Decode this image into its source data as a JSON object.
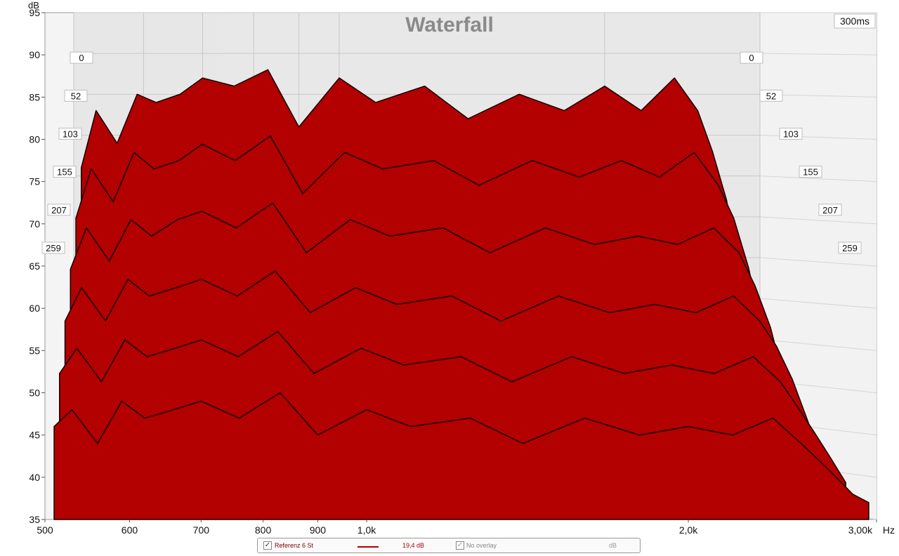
{
  "chart_data": {
    "type": "area",
    "title": "Waterfall",
    "ylabel": "dB",
    "xlabel": "Hz",
    "time_end_label": "300ms",
    "x_ticks": [
      {
        "value": 500,
        "label": "500"
      },
      {
        "value": 600,
        "label": "600"
      },
      {
        "value": 700,
        "label": "700"
      },
      {
        "value": 800,
        "label": "800"
      },
      {
        "value": 900,
        "label": "900"
      },
      {
        "value": 1000,
        "label": "1,0k"
      },
      {
        "value": 2000,
        "label": "2,0k"
      },
      {
        "value": 3000,
        "label": "3,00k"
      }
    ],
    "x_unit_label": "Hz",
    "xlim": [
      500,
      3000
    ],
    "x_scale": "log",
    "y_ticks": [
      95,
      90,
      85,
      80,
      75,
      70,
      65,
      60,
      55,
      50,
      45,
      40,
      35
    ],
    "ylim": [
      35,
      95
    ],
    "time_slices_ms": [
      0,
      52,
      103,
      155,
      207,
      259
    ],
    "series": [
      {
        "time_ms": 0,
        "x": [
          510,
          530,
          560,
          590,
          620,
          660,
          700,
          760,
          830,
          900,
          1000,
          1100,
          1250,
          1400,
          1600,
          1800,
          2000,
          2200,
          2400,
          2550,
          2650,
          2750,
          2850,
          2950
        ],
        "values": [
          76,
          83,
          79,
          85,
          84,
          85,
          87,
          86,
          88,
          81,
          87,
          84,
          86,
          82,
          85,
          83,
          86,
          83,
          87,
          83,
          78,
          72,
          62,
          50
        ]
      },
      {
        "time_ms": 52,
        "x": [
          510,
          530,
          560,
          590,
          620,
          660,
          700,
          760,
          830,
          900,
          1000,
          1100,
          1250,
          1400,
          1600,
          1800,
          2000,
          2200,
          2400,
          2550,
          2650,
          2750,
          2850,
          2950
        ],
        "values": [
          70,
          76,
          72,
          78,
          76,
          77,
          79,
          77,
          80,
          73,
          78,
          76,
          77,
          74,
          77,
          75,
          77,
          75,
          78,
          74,
          70,
          64,
          56,
          46
        ]
      },
      {
        "time_ms": 103,
        "x": [
          510,
          530,
          560,
          590,
          620,
          660,
          700,
          760,
          830,
          900,
          1000,
          1100,
          1250,
          1400,
          1600,
          1800,
          2000,
          2200,
          2400,
          2550,
          2650,
          2750,
          2850,
          2950
        ],
        "values": [
          64,
          69,
          65,
          70,
          68,
          70,
          71,
          69,
          72,
          66,
          70,
          68,
          69,
          66,
          69,
          67,
          68,
          67,
          69,
          66,
          62,
          57,
          50,
          43
        ]
      },
      {
        "time_ms": 155,
        "x": [
          510,
          530,
          560,
          590,
          620,
          660,
          700,
          760,
          830,
          900,
          1000,
          1100,
          1250,
          1400,
          1600,
          1800,
          2000,
          2200,
          2400,
          2550,
          2650,
          2750,
          2850,
          2950
        ],
        "values": [
          58,
          62,
          58,
          63,
          61,
          62,
          63,
          61,
          64,
          59,
          62,
          60,
          61,
          58,
          61,
          59,
          60,
          59,
          61,
          58,
          55,
          51,
          46,
          41
        ]
      },
      {
        "time_ms": 207,
        "x": [
          510,
          530,
          560,
          590,
          620,
          660,
          700,
          760,
          830,
          900,
          1000,
          1100,
          1250,
          1400,
          1600,
          1800,
          2000,
          2200,
          2400,
          2550,
          2650,
          2750,
          2850,
          2950
        ],
        "values": [
          52,
          55,
          51,
          56,
          54,
          55,
          56,
          54,
          57,
          52,
          55,
          53,
          54,
          51,
          54,
          52,
          53,
          52,
          54,
          51,
          48,
          45,
          42,
          39
        ]
      },
      {
        "time_ms": 259,
        "x": [
          510,
          530,
          560,
          590,
          620,
          660,
          700,
          760,
          830,
          900,
          1000,
          1100,
          1250,
          1400,
          1600,
          1800,
          2000,
          2200,
          2400,
          2550,
          2650,
          2750,
          2850,
          2950
        ],
        "values": [
          46,
          48,
          44,
          49,
          47,
          48,
          49,
          47,
          50,
          45,
          48,
          46,
          47,
          44,
          47,
          45,
          46,
          45,
          47,
          44,
          42,
          40,
          38,
          37
        ]
      }
    ],
    "fill_color": "#b30000",
    "line_color": "#1a0000",
    "floor_color": "#dcdcdc",
    "grid": true
  },
  "legend": {
    "series_name": "Referenz 6 St",
    "series_value": "19,4 dB",
    "overlay_label": "No overlay",
    "unit_label": "dB"
  }
}
